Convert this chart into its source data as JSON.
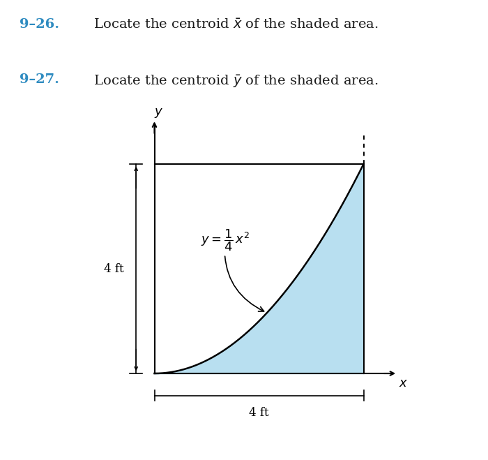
{
  "title_color": "#2E8BC0",
  "body_color": "#1a1a1a",
  "shaded_color": "#b8dff0",
  "curve_label_text": "$y = \\dfrac{1}{4}\\,x^2$",
  "x_label": "$x$",
  "y_label": "$y$",
  "dim_label_x": "4 ft",
  "dim_label_y": "4 ft",
  "x_max": 4,
  "y_max": 4,
  "background": "#ffffff",
  "num1_text": "9–26.",
  "num2_text": "9–27.",
  "body1_text": "  Locate the centroid $\\bar{x}$ of the shaded area.",
  "body2_text": "  Locate the centroid $\\bar{y}$ of the shaded area.",
  "fontsize_header": 14,
  "fontsize_axis_label": 13,
  "fontsize_curve_label": 13,
  "fontsize_dim": 12
}
